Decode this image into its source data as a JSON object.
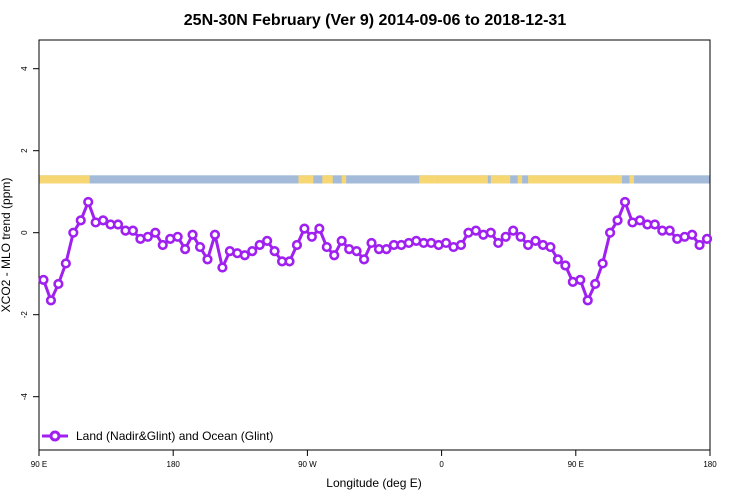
{
  "chart_data": {
    "type": "line",
    "title": "25N-30N February (Ver 9)   2014-09-06 to 2018-12-31",
    "xlabel": "Longitude (deg E)",
    "ylabel": "XCO2 - MLO trend (ppm)",
    "xlim": [
      90,
      540
    ],
    "ylim": [
      -5.3,
      4.7
    ],
    "x_ticks": [
      {
        "value": 90,
        "label": "90 E"
      },
      {
        "value": 180,
        "label": "180"
      },
      {
        "value": 270,
        "label": "90 W"
      },
      {
        "value": 360,
        "label": "0"
      },
      {
        "value": 450,
        "label": "90 E"
      },
      {
        "value": 540,
        "label": "180"
      }
    ],
    "y_ticks": [
      {
        "value": -4,
        "label": "-4"
      },
      {
        "value": -2,
        "label": "-2"
      },
      {
        "value": 0,
        "label": "0"
      },
      {
        "value": 2,
        "label": "2"
      },
      {
        "value": 4,
        "label": "4"
      }
    ],
    "land_ocean_strip": {
      "y_range": [
        1.2,
        1.4
      ],
      "ocean_color": "#a3bbd9",
      "land_color": "#f7d774",
      "land_segments": [
        [
          90,
          124
        ],
        [
          264,
          274
        ],
        [
          280,
          287
        ],
        [
          293,
          296
        ],
        [
          345,
          357
        ],
        [
          357,
          391
        ],
        [
          393,
          406
        ],
        [
          411,
          414
        ],
        [
          418,
          481
        ],
        [
          486,
          489
        ]
      ]
    },
    "series": [
      {
        "name": "Land (Nadir&Glint) and Ocean (Glint)",
        "color": "#a020f0",
        "x": [
          93,
          98,
          103,
          108,
          113,
          118,
          123,
          128,
          133,
          138,
          143,
          148,
          153,
          158,
          163,
          168,
          173,
          178,
          183,
          188,
          193,
          198,
          203,
          208,
          213,
          218,
          223,
          228,
          233,
          238,
          243,
          248,
          253,
          258,
          263,
          268,
          273,
          278,
          283,
          288,
          293,
          298,
          303,
          308,
          313,
          318,
          323,
          328,
          333,
          338,
          343,
          348,
          353,
          358,
          363,
          368,
          373,
          378,
          383,
          388,
          393,
          398,
          403,
          408,
          413,
          418,
          423,
          428,
          433,
          438,
          443,
          448,
          453,
          458,
          463,
          468,
          473,
          478,
          483,
          488,
          493,
          498,
          503,
          508,
          513,
          518,
          523,
          528,
          533,
          538
        ],
        "y": [
          -1.15,
          -1.65,
          -1.25,
          -0.75,
          0.0,
          0.3,
          0.75,
          0.25,
          0.3,
          0.2,
          0.2,
          0.05,
          0.05,
          -0.15,
          -0.1,
          0.0,
          -0.3,
          -0.15,
          -0.1,
          -0.4,
          -0.05,
          -0.35,
          -0.65,
          -0.05,
          -0.85,
          -0.45,
          -0.5,
          -0.55,
          -0.45,
          -0.3,
          -0.2,
          -0.45,
          -0.7,
          -0.7,
          -0.3,
          0.1,
          -0.1,
          0.1,
          -0.35,
          -0.55,
          -0.2,
          -0.4,
          -0.45,
          -0.65,
          -0.25,
          -0.4,
          -0.4,
          -0.3,
          -0.3,
          -0.25,
          -0.2,
          -0.25,
          -0.25,
          -0.3,
          -0.25,
          -0.35,
          -0.3,
          0.0,
          0.05,
          -0.05,
          0.0,
          -0.25,
          -0.1,
          0.05,
          -0.1,
          -0.3,
          -0.2,
          -0.3,
          -0.35,
          -0.65,
          -0.8,
          -1.2,
          -1.15,
          -1.65,
          -1.25,
          -0.75,
          0.0,
          0.3,
          0.75,
          0.25,
          0.3,
          0.2,
          0.2,
          0.05,
          0.05,
          -0.15,
          -0.1,
          -0.05,
          -0.3,
          -0.15
        ]
      }
    ],
    "legend": {
      "position": "bottom-left"
    },
    "grid": false
  }
}
